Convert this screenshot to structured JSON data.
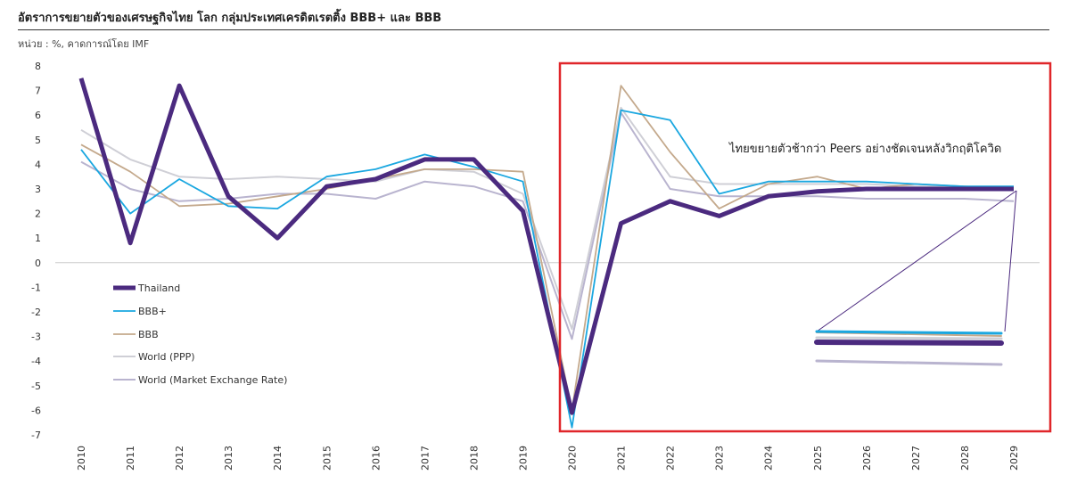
{
  "header": {
    "title": "อัตราการขยายตัวของเศรษฐกิจไทย โลก กลุ่มประเทศเครดิตเรตติ้ง BBB+ และ BBB",
    "subtitle": "หน่วย : %, คาดการณ์โดย IMF"
  },
  "chart_data": {
    "type": "line",
    "x": [
      "2010",
      "2011",
      "2012",
      "2013",
      "2014",
      "2015",
      "2016",
      "2017",
      "2018",
      "2019",
      "2020",
      "2021",
      "2022",
      "2023",
      "2024",
      "2025",
      "2026",
      "2027",
      "2028",
      "2029"
    ],
    "ylim": [
      -7,
      8
    ],
    "yticks": [
      "8",
      "7",
      "6",
      "5",
      "4",
      "3",
      "2",
      "1",
      "0",
      "-1",
      "-2",
      "-3",
      "-4",
      "-5",
      "-6",
      "-7"
    ],
    "grid": false,
    "legend_position": "left",
    "series": [
      {
        "name": "Thailand",
        "color": "#4b2a7f",
        "values": [
          7.5,
          0.8,
          7.2,
          2.7,
          1.0,
          3.1,
          3.4,
          4.2,
          4.2,
          2.1,
          -6.1,
          1.6,
          2.5,
          1.9,
          2.7,
          2.9,
          3.0,
          3.0,
          3.0,
          3.0
        ]
      },
      {
        "name": "BBB+",
        "color": "#1aa7e0",
        "values": [
          4.6,
          2.0,
          3.4,
          2.3,
          2.2,
          3.5,
          3.8,
          4.4,
          3.9,
          3.3,
          -6.7,
          6.2,
          5.8,
          2.8,
          3.3,
          3.3,
          3.3,
          3.2,
          3.1,
          3.1
        ]
      },
      {
        "name": "BBB",
        "color": "#c4a98c",
        "values": [
          4.8,
          3.7,
          2.3,
          2.4,
          2.7,
          3.0,
          3.4,
          3.8,
          3.8,
          3.7,
          -6.0,
          7.2,
          4.5,
          2.2,
          3.2,
          3.5,
          3.0,
          3.2,
          3.1,
          3.0
        ]
      },
      {
        "name": "World (PPP)",
        "color": "#cfcfd6",
        "values": [
          5.4,
          4.2,
          3.5,
          3.4,
          3.5,
          3.4,
          3.3,
          3.8,
          3.7,
          2.8,
          -2.7,
          6.3,
          3.5,
          3.2,
          3.2,
          3.2,
          3.2,
          3.1,
          3.1,
          3.1
        ]
      },
      {
        "name": "World (Market Exchange Rate)",
        "color": "#b9b4cf",
        "values": [
          4.1,
          3.0,
          2.5,
          2.6,
          2.8,
          2.8,
          2.6,
          3.3,
          3.1,
          2.5,
          -3.1,
          6.1,
          3.0,
          2.7,
          2.7,
          2.7,
          2.6,
          2.6,
          2.6,
          2.5
        ]
      }
    ],
    "annotation": "ไทยขยายตัวช้ากว่า Peers อย่างชัดเจนหลังวิกฤติโควิด"
  }
}
